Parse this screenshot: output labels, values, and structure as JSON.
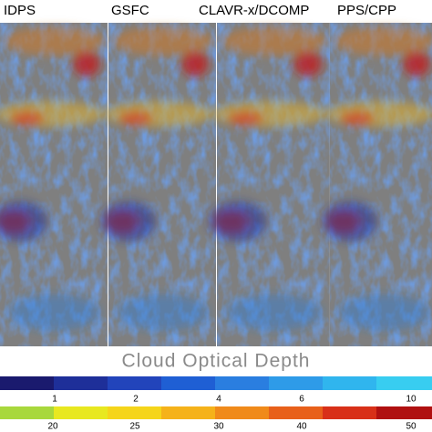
{
  "panels": [
    {
      "title": "IDPS"
    },
    {
      "title": "GSFC"
    },
    {
      "title": "CLAVR-x/DCOMP"
    },
    {
      "title": "PPS/CPP"
    }
  ],
  "colorbar": {
    "label": "Cloud Optical Depth",
    "ticks_top": [
      1,
      2,
      4,
      6,
      10
    ],
    "ticks_bottom": [
      20,
      25,
      30,
      40,
      50
    ]
  }
}
